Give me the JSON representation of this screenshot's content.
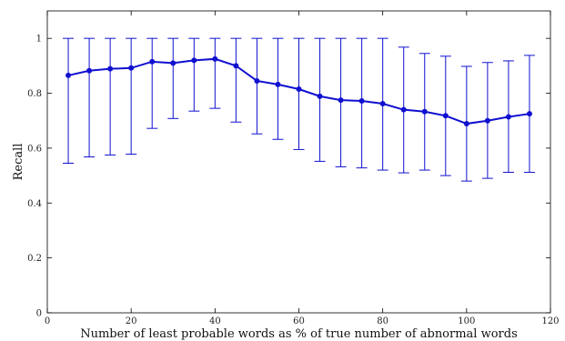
{
  "chart_data": {
    "type": "line",
    "title": "",
    "xlabel": "Number of least probable words as % of true number of abnormal words",
    "ylabel": "Recall",
    "xlim": [
      0,
      120
    ],
    "ylim": [
      0,
      1.1
    ],
    "xticks": [
      0,
      20,
      40,
      60,
      80,
      100,
      120
    ],
    "yticks": [
      0,
      0.2,
      0.4,
      0.6,
      0.8,
      1
    ],
    "xtick_labels": [
      "0",
      "20",
      "40",
      "60",
      "80",
      "100",
      "120"
    ],
    "ytick_labels": [
      "0",
      "0.2",
      "0.4",
      "0.6",
      "0.8",
      "1"
    ],
    "grid": false,
    "series": [
      {
        "color": "#1010d0",
        "x": [
          5,
          10,
          15,
          20,
          25,
          30,
          35,
          40,
          45,
          50,
          55,
          60,
          65,
          70,
          75,
          80,
          85,
          90,
          95,
          100,
          105,
          110,
          115
        ],
        "y": [
          0.865,
          0.882,
          0.889,
          0.892,
          0.915,
          0.91,
          0.92,
          0.925,
          0.9,
          0.845,
          0.832,
          0.815,
          0.789,
          0.775,
          0.772,
          0.762,
          0.74,
          0.733,
          0.718,
          0.689,
          0.7,
          0.714,
          0.725
        ],
        "err_low": [
          0.545,
          0.568,
          0.575,
          0.578,
          0.672,
          0.708,
          0.735,
          0.745,
          0.695,
          0.652,
          0.632,
          0.595,
          0.552,
          0.532,
          0.528,
          0.52,
          0.51,
          0.52,
          0.5,
          0.48,
          0.49,
          0.512,
          0.512
        ],
        "err_high": [
          1.0,
          1.0,
          1.0,
          1.0,
          1.0,
          1.0,
          1.0,
          1.0,
          1.0,
          1.0,
          1.0,
          1.0,
          1.0,
          1.0,
          1.0,
          1.0,
          0.968,
          0.945,
          0.935,
          0.898,
          0.912,
          0.918,
          0.938
        ]
      }
    ]
  }
}
